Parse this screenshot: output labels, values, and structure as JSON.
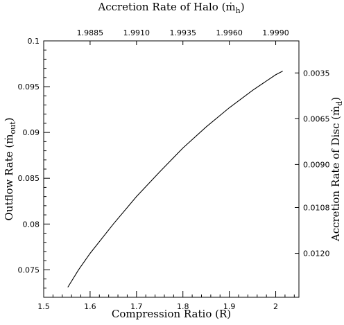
{
  "chart_data": {
    "type": "line",
    "title": "",
    "xlabel_bottom": "Compression Ratio (R)",
    "xlabel_top_main": "Accretion Rate of Halo (",
    "xlabel_top_sym": "ṁ",
    "xlabel_top_sub": "h",
    "xlabel_top_close": ")",
    "ylabel_left_main": "Outflow Rate (",
    "ylabel_left_sym": "ṁ",
    "ylabel_left_sub": "out",
    "ylabel_left_close": ")",
    "ylabel_right_main": "Accretion Rate of Disc (",
    "ylabel_right_sym": "ṁ",
    "ylabel_right_sub": "d",
    "ylabel_right_close": ")",
    "xlim": [
      1.5,
      2.05
    ],
    "ylim": [
      0.072,
      0.1
    ],
    "x_ticks": [
      1.5,
      1.6,
      1.7,
      1.8,
      1.9,
      2.0
    ],
    "x_tick_labels": [
      "1.5",
      "1.6",
      "1.7",
      "1.8",
      "1.9",
      "2"
    ],
    "y_ticks": [
      0.075,
      0.08,
      0.085,
      0.09,
      0.095,
      0.1
    ],
    "y_tick_labels": [
      "0.075",
      "0.08",
      "0.085",
      "0.09",
      "0.095",
      "0.1"
    ],
    "top_ticks_at_x": [
      1.6,
      1.7,
      1.8,
      1.9,
      2.0
    ],
    "top_tick_labels": [
      "1.9885",
      "1.9910",
      "1.9935",
      "1.9960",
      "1.9990"
    ],
    "right_ticks_at_y": [
      0.0965,
      0.0915,
      0.0865,
      0.0818,
      0.0768
    ],
    "right_tick_labels": [
      "0.0035",
      "0.0065",
      "0.0090",
      "0.0108",
      "0.0120"
    ],
    "series": [
      {
        "x": [
          1.552,
          1.575,
          1.6,
          1.65,
          1.7,
          1.75,
          1.8,
          1.85,
          1.9,
          1.95,
          2.0,
          2.015
        ],
        "y": [
          0.0731,
          0.075,
          0.0768,
          0.08,
          0.083,
          0.0857,
          0.0883,
          0.0906,
          0.0927,
          0.0946,
          0.0963,
          0.0967
        ]
      }
    ]
  }
}
